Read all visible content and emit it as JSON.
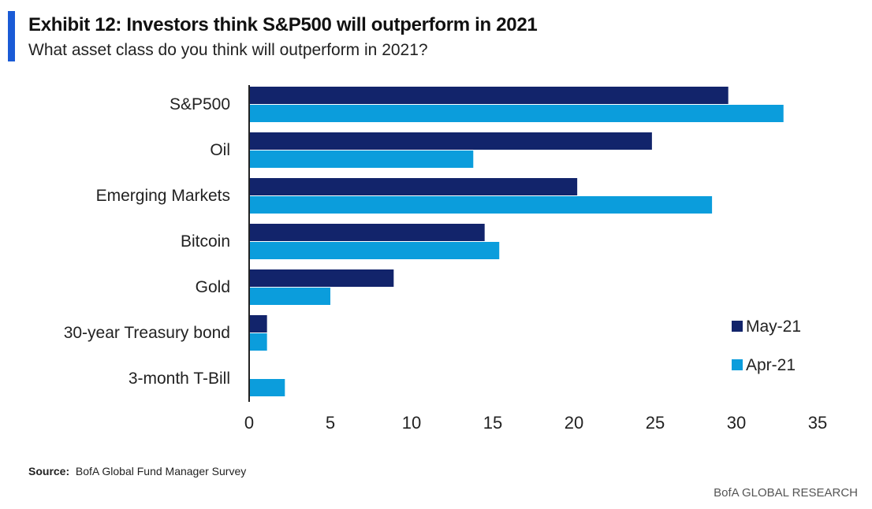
{
  "header": {
    "title": "Exhibit 12: Investors think S&P500 will outperform in 2021",
    "subtitle": "What asset class do you think will outperform in 2021?"
  },
  "colors": {
    "accent": "#1a5bd6",
    "may": "#12246b",
    "apr": "#0b9ddc",
    "axis": "#222222"
  },
  "chart_data": {
    "type": "bar",
    "orientation": "horizontal",
    "categories": [
      "S&P500",
      "Oil",
      "Emerging Markets",
      "Bitcoin",
      "Gold",
      "30-year Treasury bond",
      "3-month T-Bill"
    ],
    "series": [
      {
        "name": "May-21",
        "values": [
          29.5,
          24.8,
          20.2,
          14.5,
          8.9,
          1.1,
          0
        ]
      },
      {
        "name": "Apr-21",
        "values": [
          32.9,
          13.8,
          28.5,
          15.4,
          5.0,
          1.1,
          2.2
        ]
      }
    ],
    "xlim": [
      0,
      35
    ],
    "xticks": [
      0,
      5,
      10,
      15,
      20,
      25,
      30,
      35
    ],
    "grid": false,
    "legend_position": "bottom-right"
  },
  "footer": {
    "source_label": "Source:",
    "source_text": "BofA Global Fund Manager Survey",
    "brand": "BofA GLOBAL RESEARCH"
  }
}
